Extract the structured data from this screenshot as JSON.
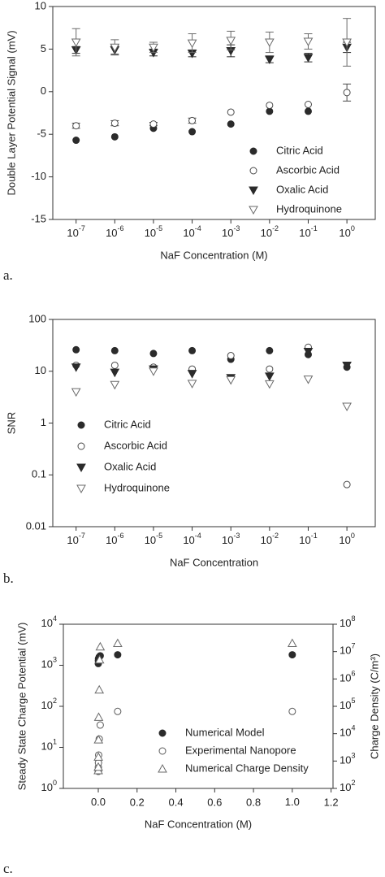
{
  "chart_data": [
    {
      "type": "scatter",
      "panel_label": "a.",
      "ylabel": "Double Layer Potential Signal (mV)",
      "xlabel": "NaF Concentration (M)",
      "xscale": "log",
      "xlim": [
        2.5e-08,
        5.4
      ],
      "xticks": [
        {
          "value": 1e-07,
          "label": "10",
          "exponent": "-7"
        },
        {
          "value": 1e-06,
          "label": "10",
          "exponent": "-6"
        },
        {
          "value": 1e-05,
          "label": "10",
          "exponent": "-5"
        },
        {
          "value": 0.0001,
          "label": "10",
          "exponent": "-4"
        },
        {
          "value": 0.001,
          "label": "10",
          "exponent": "-3"
        },
        {
          "value": 0.01,
          "label": "10",
          "exponent": "-2"
        },
        {
          "value": 0.1,
          "label": "10",
          "exponent": "-1"
        },
        {
          "value": 1,
          "label": "10",
          "exponent": "0"
        }
      ],
      "ylim": [
        -15,
        10
      ],
      "yticks": [
        -15,
        -10,
        -5,
        0,
        5,
        10
      ],
      "legend": "lower right",
      "x": [
        1e-07,
        1e-06,
        1e-05,
        0.0001,
        0.001,
        0.01,
        0.1,
        1
      ],
      "series": [
        {
          "name": "Citric Acid",
          "marker": "filled-circle",
          "color": "#2b2b2b",
          "values": [
            -5.7,
            -5.3,
            -4.3,
            -4.7,
            -3.8,
            -2.3,
            -2.3,
            null
          ]
        },
        {
          "name": "Ascorbic Acid",
          "marker": "open-circle",
          "color": "#4a4a4a",
          "values": [
            -4.0,
            -3.7,
            -3.8,
            -3.4,
            -2.4,
            -1.6,
            -1.5,
            -0.1
          ],
          "errors": [
            0.3,
            0.3,
            0.2,
            0.3,
            null,
            null,
            null,
            1.0
          ]
        },
        {
          "name": "Oxalic Acid",
          "marker": "filled-triangle-down",
          "color": "#2b2b2b",
          "values": [
            4.9,
            4.9,
            4.6,
            4.5,
            4.8,
            3.8,
            4.0,
            5.2
          ],
          "errors": [
            0.4,
            0.5,
            0.4,
            0.4,
            0.7,
            0.4,
            0.5,
            0.6
          ]
        },
        {
          "name": "Hydroquinone",
          "marker": "open-triangle-down",
          "color": "#6a6a6a",
          "values": [
            5.8,
            5.2,
            5.2,
            5.7,
            6.0,
            5.8,
            5.9,
            5.8
          ],
          "errors": [
            1.6,
            0.9,
            0.6,
            1.1,
            1.1,
            1.2,
            0.9,
            2.8
          ]
        }
      ]
    },
    {
      "type": "scatter",
      "panel_label": "b.",
      "ylabel": "SNR",
      "xlabel": "NaF Concentration",
      "xscale": "log",
      "xlim": [
        2.5e-08,
        5.4
      ],
      "yscale": "log",
      "xticks": [
        {
          "value": 1e-07,
          "label": "10",
          "exponent": "-7"
        },
        {
          "value": 1e-06,
          "label": "10",
          "exponent": "-6"
        },
        {
          "value": 1e-05,
          "label": "10",
          "exponent": "-5"
        },
        {
          "value": 0.0001,
          "label": "10",
          "exponent": "-4"
        },
        {
          "value": 0.001,
          "label": "10",
          "exponent": "-3"
        },
        {
          "value": 0.01,
          "label": "10",
          "exponent": "-2"
        },
        {
          "value": 0.1,
          "label": "10",
          "exponent": "-1"
        },
        {
          "value": 1,
          "label": "10",
          "exponent": "0"
        }
      ],
      "ylim": [
        0.01,
        100
      ],
      "yticks": [
        0.01,
        0.1,
        1,
        10,
        100
      ],
      "legend": "center left",
      "x": [
        1e-07,
        1e-06,
        1e-05,
        0.0001,
        0.001,
        0.01,
        0.1,
        1
      ],
      "series": [
        {
          "name": "Citric Acid",
          "marker": "filled-circle",
          "color": "#2b2b2b",
          "values": [
            26,
            25,
            22,
            25,
            17,
            25,
            21,
            12
          ]
        },
        {
          "name": "Ascorbic Acid",
          "marker": "open-circle",
          "color": "#4a4a4a",
          "values": [
            13,
            13,
            12,
            11,
            20,
            11,
            29,
            0.065
          ]
        },
        {
          "name": "Oxalic Acid",
          "marker": "filled-triangle-down",
          "color": "#2b2b2b",
          "values": [
            12,
            9.5,
            11,
            9,
            7.5,
            8,
            24,
            13
          ]
        },
        {
          "name": "Hydroquinone",
          "marker": "open-triangle-down",
          "color": "#6a6a6a",
          "values": [
            4,
            5.5,
            10,
            5.8,
            6.8,
            5.7,
            7,
            2.1
          ]
        }
      ]
    },
    {
      "type": "scatter",
      "panel_label": "c.",
      "ylabel": "Steady State Charge Potential (mV)",
      "y2label": "Charge Density (C/m³)",
      "xlabel": "NaF Concentration (M)",
      "xlim": [
        -0.18,
        1.21
      ],
      "xticks": [
        {
          "value": 0,
          "label": "0.0"
        },
        0.2,
        0.4,
        0.6,
        0.8,
        {
          "value": 1,
          "label": "1.0"
        },
        1.2
      ],
      "yscale": "log",
      "ylim": [
        1,
        10000
      ],
      "yticks": [
        {
          "value": 1,
          "label": "10",
          "exponent": "0"
        },
        {
          "value": 10,
          "label": "10",
          "exponent": "1"
        },
        {
          "value": 100,
          "label": "10",
          "exponent": "2"
        },
        {
          "value": 1000,
          "label": "10",
          "exponent": "3"
        },
        {
          "value": 10000,
          "label": "10",
          "exponent": "4"
        }
      ],
      "y2scale": "log",
      "y2lim": [
        100,
        100000000
      ],
      "y2ticks": [
        {
          "value": 100,
          "label": "10",
          "exponent": "2"
        },
        {
          "value": 1000,
          "label": "10",
          "exponent": "3"
        },
        {
          "value": 10000,
          "label": "10",
          "exponent": "4"
        },
        {
          "value": 100000,
          "label": "10",
          "exponent": "5"
        },
        {
          "value": 1000000,
          "label": "10",
          "exponent": "6"
        },
        {
          "value": 10000000,
          "label": "10",
          "exponent": "7"
        },
        {
          "value": 100000000,
          "label": "10",
          "exponent": "8"
        }
      ],
      "legend": "lower center",
      "series": [
        {
          "name": "Numerical Model",
          "marker": "filled-circle",
          "color": "#2b2b2b",
          "x": [
            0.0001,
            0.0005,
            0.001,
            0.005,
            0.01,
            0.1,
            1.0
          ],
          "values": [
            1100,
            1300,
            1450,
            1600,
            1700,
            1800,
            1800
          ]
        },
        {
          "name": "Experimental Nanopore",
          "marker": "open-circle",
          "color": "#5a5a5a",
          "x": [
            0.0001,
            0.0005,
            0.001,
            0.002,
            0.005,
            0.01,
            0.1,
            1.0
          ],
          "values": [
            2.6,
            3.3,
            4.2,
            6.5,
            16,
            35,
            75,
            75
          ]
        },
        {
          "name": "Numerical Charge Density",
          "marker": "open-triangle-up",
          "color": "#6a6a6a",
          "axis": "y2",
          "x": [
            0.0001,
            0.0002,
            0.0005,
            0.001,
            0.002,
            0.005,
            0.007,
            0.01,
            0.1,
            1.0
          ],
          "values": [
            450,
            600,
            1400,
            6000,
            40000,
            400000,
            5000000,
            15000000,
            20000000,
            20000000
          ]
        }
      ]
    }
  ]
}
